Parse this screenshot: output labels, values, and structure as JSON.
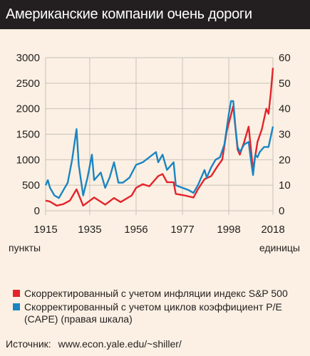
{
  "title": "Американские компании очень дороги",
  "units": {
    "left": "пункты",
    "right": "единицы"
  },
  "legend": [
    {
      "label": "Скорректированный с учетом инфляции индекс S&P 500",
      "color": "#e4232b"
    },
    {
      "label": "Скорректированный с учетом циклов коэффициент P/E (CAPE) (правая шкала)",
      "color": "#1a85c1"
    }
  ],
  "source": {
    "label": "Источник:",
    "url": "www.econ.yale.edu/~shiller/"
  },
  "colors": {
    "background": "#fbf0e3",
    "title_bar": "#231f20",
    "sp500": "#e4232b",
    "cape": "#1a85c1",
    "grid": "#c9c2b9"
  },
  "chart_data": {
    "type": "line",
    "xlim": [
      1915,
      2018
    ],
    "x_ticks": [
      1915,
      1935,
      1956,
      1977,
      1998,
      2018
    ],
    "y_left": {
      "lim": [
        0,
        3000
      ],
      "ticks": [
        0,
        500,
        1000,
        1500,
        2000,
        2500,
        3000
      ]
    },
    "y_right": {
      "lim": [
        0,
        60
      ],
      "ticks": [
        0,
        10,
        20,
        30,
        40,
        50,
        60
      ]
    },
    "grid": true,
    "series": [
      {
        "name": "Скорректированный с учетом инфляции индекс S&P 500",
        "axis": "left",
        "color": "#e4232b",
        "points": [
          [
            1915,
            200
          ],
          [
            1917,
            180
          ],
          [
            1920,
            100
          ],
          [
            1923,
            130
          ],
          [
            1926,
            200
          ],
          [
            1929,
            420
          ],
          [
            1932,
            100
          ],
          [
            1937,
            260
          ],
          [
            1942,
            120
          ],
          [
            1946,
            250
          ],
          [
            1949,
            170
          ],
          [
            1954,
            300
          ],
          [
            1956,
            450
          ],
          [
            1959,
            520
          ],
          [
            1962,
            480
          ],
          [
            1966,
            680
          ],
          [
            1968,
            720
          ],
          [
            1970,
            560
          ],
          [
            1973,
            560
          ],
          [
            1974,
            330
          ],
          [
            1978,
            300
          ],
          [
            1982,
            260
          ],
          [
            1984,
            420
          ],
          [
            1987,
            620
          ],
          [
            1990,
            680
          ],
          [
            1993,
            880
          ],
          [
            1995,
            1000
          ],
          [
            1997,
            1550
          ],
          [
            2000,
            2050
          ],
          [
            2002,
            1200
          ],
          [
            2003,
            1100
          ],
          [
            2005,
            1350
          ],
          [
            2007,
            1650
          ],
          [
            2009,
            800
          ],
          [
            2011,
            1350
          ],
          [
            2013,
            1600
          ],
          [
            2015,
            2000
          ],
          [
            2016,
            1900
          ],
          [
            2017,
            2300
          ],
          [
            2018,
            2800
          ]
        ]
      },
      {
        "name": "Скорректированный с учетом циклов коэффициент P/E (CAPE) (правая шкала)",
        "axis": "right",
        "color": "#1a85c1",
        "points": [
          [
            1915,
            10
          ],
          [
            1916,
            12
          ],
          [
            1917,
            9
          ],
          [
            1919,
            6
          ],
          [
            1921,
            5
          ],
          [
            1923,
            8
          ],
          [
            1925,
            11
          ],
          [
            1927,
            20
          ],
          [
            1929,
            32
          ],
          [
            1930,
            18
          ],
          [
            1932,
            6
          ],
          [
            1934,
            13
          ],
          [
            1936,
            22
          ],
          [
            1937,
            12
          ],
          [
            1940,
            15
          ],
          [
            1942,
            9
          ],
          [
            1944,
            13
          ],
          [
            1946,
            19
          ],
          [
            1948,
            11
          ],
          [
            1950,
            11
          ],
          [
            1953,
            13
          ],
          [
            1956,
            18
          ],
          [
            1959,
            19
          ],
          [
            1962,
            21
          ],
          [
            1965,
            23
          ],
          [
            1966,
            19
          ],
          [
            1968,
            22
          ],
          [
            1970,
            16
          ],
          [
            1973,
            19
          ],
          [
            1974,
            10
          ],
          [
            1977,
            9
          ],
          [
            1980,
            8
          ],
          [
            1982,
            7
          ],
          [
            1984,
            10
          ],
          [
            1987,
            16
          ],
          [
            1988,
            13
          ],
          [
            1990,
            17
          ],
          [
            1992,
            20
          ],
          [
            1994,
            21
          ],
          [
            1996,
            26
          ],
          [
            1998,
            38
          ],
          [
            1999,
            43
          ],
          [
            2000,
            43
          ],
          [
            2001,
            33
          ],
          [
            2002,
            25
          ],
          [
            2003,
            23
          ],
          [
            2005,
            26
          ],
          [
            2007,
            27
          ],
          [
            2008,
            20
          ],
          [
            2009,
            14
          ],
          [
            2010,
            22
          ],
          [
            2011,
            21
          ],
          [
            2012,
            23
          ],
          [
            2014,
            25
          ],
          [
            2016,
            25
          ],
          [
            2017,
            29
          ],
          [
            2018,
            33
          ]
        ]
      }
    ]
  }
}
